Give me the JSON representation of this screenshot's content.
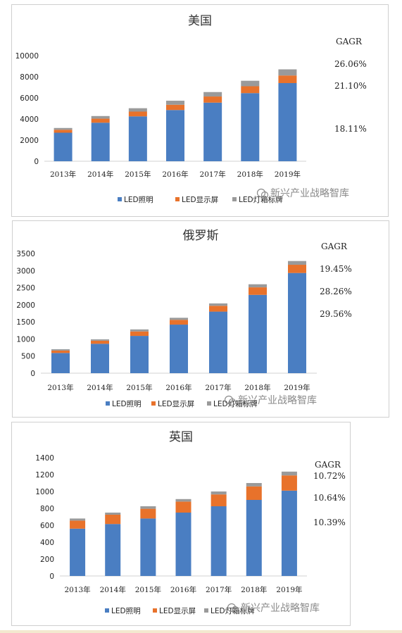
{
  "legend": [
    "LED照明",
    "LED显示屏",
    "LED灯箱标牌"
  ],
  "colors": {
    "lighting": "#4a7ec2",
    "display": "#e8722b",
    "signage": "#9a9a9a"
  },
  "watermark": "新兴产业战略智库",
  "chart_data": [
    {
      "type": "bar",
      "stacked": true,
      "title": "美国",
      "categories": [
        "2013年",
        "2014年",
        "2015年",
        "2016年",
        "2017年",
        "2018年",
        "2019年"
      ],
      "series": [
        {
          "name": "LED照明",
          "values": [
            2700,
            3650,
            4250,
            4850,
            5550,
            6450,
            7400
          ]
        },
        {
          "name": "LED显示屏",
          "values": [
            280,
            380,
            450,
            500,
            580,
            650,
            720
          ]
        },
        {
          "name": "LED灯箱标牌",
          "values": [
            170,
            250,
            320,
            380,
            420,
            520,
            580
          ]
        }
      ],
      "ylim": [
        0,
        10000
      ],
      "yticks": [
        0,
        2000,
        4000,
        6000,
        8000,
        10000
      ],
      "gagr_label": "GAGR",
      "gagr": [
        "26.06%",
        "21.10%",
        "18.11%"
      ]
    },
    {
      "type": "bar",
      "stacked": true,
      "title": "俄罗斯",
      "categories": [
        "2013年",
        "2014年",
        "2015年",
        "2016年",
        "2017年",
        "2018年",
        "2019年"
      ],
      "series": [
        {
          "name": "LED照明",
          "values": [
            590,
            860,
            1090,
            1420,
            1800,
            2290,
            2930
          ]
        },
        {
          "name": "LED显示屏",
          "values": [
            70,
            90,
            130,
            140,
            170,
            220,
            240
          ]
        },
        {
          "name": "LED灯箱标牌",
          "values": [
            40,
            40,
            60,
            60,
            70,
            90,
            110
          ]
        }
      ],
      "ylim": [
        0,
        3500
      ],
      "yticks": [
        0,
        500,
        1000,
        1500,
        2000,
        2500,
        3000,
        3500
      ],
      "gagr_label": "GAGR",
      "gagr": [
        "19.45%",
        "28.26%",
        "29.56%"
      ]
    },
    {
      "type": "bar",
      "stacked": true,
      "title": "英国",
      "categories": [
        "2013年",
        "2014年",
        "2015年",
        "2016年",
        "2017年",
        "2018年",
        "2019年"
      ],
      "series": [
        {
          "name": "LED照明",
          "values": [
            560,
            615,
            680,
            750,
            825,
            900,
            1010
          ]
        },
        {
          "name": "LED显示屏",
          "values": [
            95,
            110,
            115,
            130,
            140,
            160,
            180
          ]
        },
        {
          "name": "LED灯箱标牌",
          "values": [
            25,
            25,
            30,
            30,
            35,
            40,
            45
          ]
        }
      ],
      "ylim": [
        0,
        1400
      ],
      "yticks": [
        0,
        200,
        400,
        600,
        800,
        1000,
        1200,
        1400
      ],
      "gagr_label": "GAGR",
      "gagr": [
        "10.72%",
        "10.64%",
        "10.39%"
      ]
    }
  ]
}
